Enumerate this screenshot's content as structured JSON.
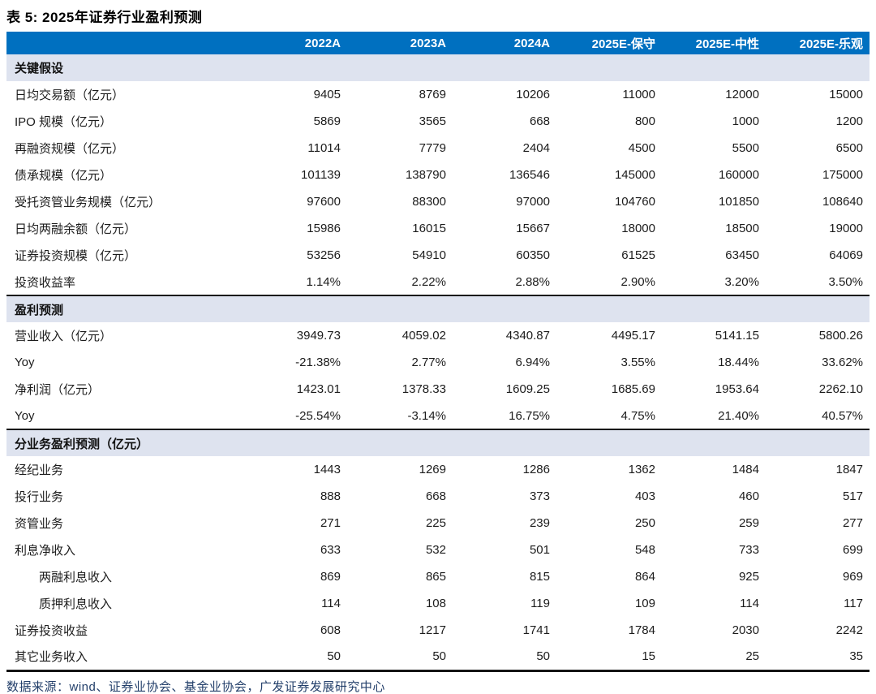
{
  "title": "表 5: 2025年证券行业盈利预测",
  "table": {
    "columns": [
      "2022A",
      "2023A",
      "2024A",
      "2025E-保守",
      "2025E-中性",
      "2025E-乐观"
    ],
    "sections": [
      {
        "header": "关键假设",
        "rows": [
          {
            "label": "日均交易额（亿元）",
            "values": [
              "9405",
              "8769",
              "10206",
              "11000",
              "12000",
              "15000"
            ]
          },
          {
            "label": "IPO 规模（亿元）",
            "values": [
              "5869",
              "3565",
              "668",
              "800",
              "1000",
              "1200"
            ]
          },
          {
            "label": "再融资规模（亿元）",
            "values": [
              "11014",
              "7779",
              "2404",
              "4500",
              "5500",
              "6500"
            ]
          },
          {
            "label": "债承规模（亿元）",
            "values": [
              "101139",
              "138790",
              "136546",
              "145000",
              "160000",
              "175000"
            ]
          },
          {
            "label": "受托资管业务规模（亿元）",
            "values": [
              "97600",
              "88300",
              "97000",
              "104760",
              "101850",
              "108640"
            ]
          },
          {
            "label": "日均两融余额（亿元）",
            "values": [
              "15986",
              "16015",
              "15667",
              "18000",
              "18500",
              "19000"
            ]
          },
          {
            "label": "证券投资规模（亿元）",
            "values": [
              "53256",
              "54910",
              "60350",
              "61525",
              "63450",
              "64069"
            ]
          },
          {
            "label": "投资收益率",
            "values": [
              "1.14%",
              "2.22%",
              "2.88%",
              "2.90%",
              "3.20%",
              "3.50%"
            ]
          }
        ]
      },
      {
        "header": "盈利预测",
        "rows": [
          {
            "label": "营业收入（亿元）",
            "values": [
              "3949.73",
              "4059.02",
              "4340.87",
              "4495.17",
              "5141.15",
              "5800.26"
            ]
          },
          {
            "label": "Yoy",
            "values": [
              "-21.38%",
              "2.77%",
              "6.94%",
              "3.55%",
              "18.44%",
              "33.62%"
            ]
          },
          {
            "label": "净利润（亿元）",
            "values": [
              "1423.01",
              "1378.33",
              "1609.25",
              "1685.69",
              "1953.64",
              "2262.10"
            ]
          },
          {
            "label": "Yoy",
            "values": [
              "-25.54%",
              "-3.14%",
              "16.75%",
              "4.75%",
              "21.40%",
              "40.57%"
            ]
          }
        ]
      },
      {
        "header": "分业务盈利预测（亿元）",
        "rows": [
          {
            "label": "经纪业务",
            "values": [
              "1443",
              "1269",
              "1286",
              "1362",
              "1484",
              "1847"
            ]
          },
          {
            "label": "投行业务",
            "values": [
              "888",
              "668",
              "373",
              "403",
              "460",
              "517"
            ]
          },
          {
            "label": "资管业务",
            "values": [
              "271",
              "225",
              "239",
              "250",
              "259",
              "277"
            ]
          },
          {
            "label": "利息净收入",
            "values": [
              "633",
              "532",
              "501",
              "548",
              "733",
              "699"
            ]
          },
          {
            "label": "两融利息收入",
            "values": [
              "869",
              "865",
              "815",
              "864",
              "925",
              "969"
            ],
            "indent": true
          },
          {
            "label": "质押利息收入",
            "values": [
              "114",
              "108",
              "119",
              "109",
              "114",
              "117"
            ],
            "indent": true
          },
          {
            "label": "证券投资收益",
            "values": [
              "608",
              "1217",
              "1741",
              "1784",
              "2030",
              "2242"
            ]
          },
          {
            "label": "其它业务收入",
            "values": [
              "50",
              "50",
              "50",
              "15",
              "25",
              "35"
            ]
          }
        ]
      }
    ]
  },
  "footer": "数据来源：wind、证券业协会、基金业协会，广发证券发展研究中心",
  "colors": {
    "header_bg": "#0070C0",
    "section_bg": "#DEE3EF",
    "rule": "#141414",
    "footer_text": "#24406B",
    "body_text": "#1C1C1C"
  }
}
